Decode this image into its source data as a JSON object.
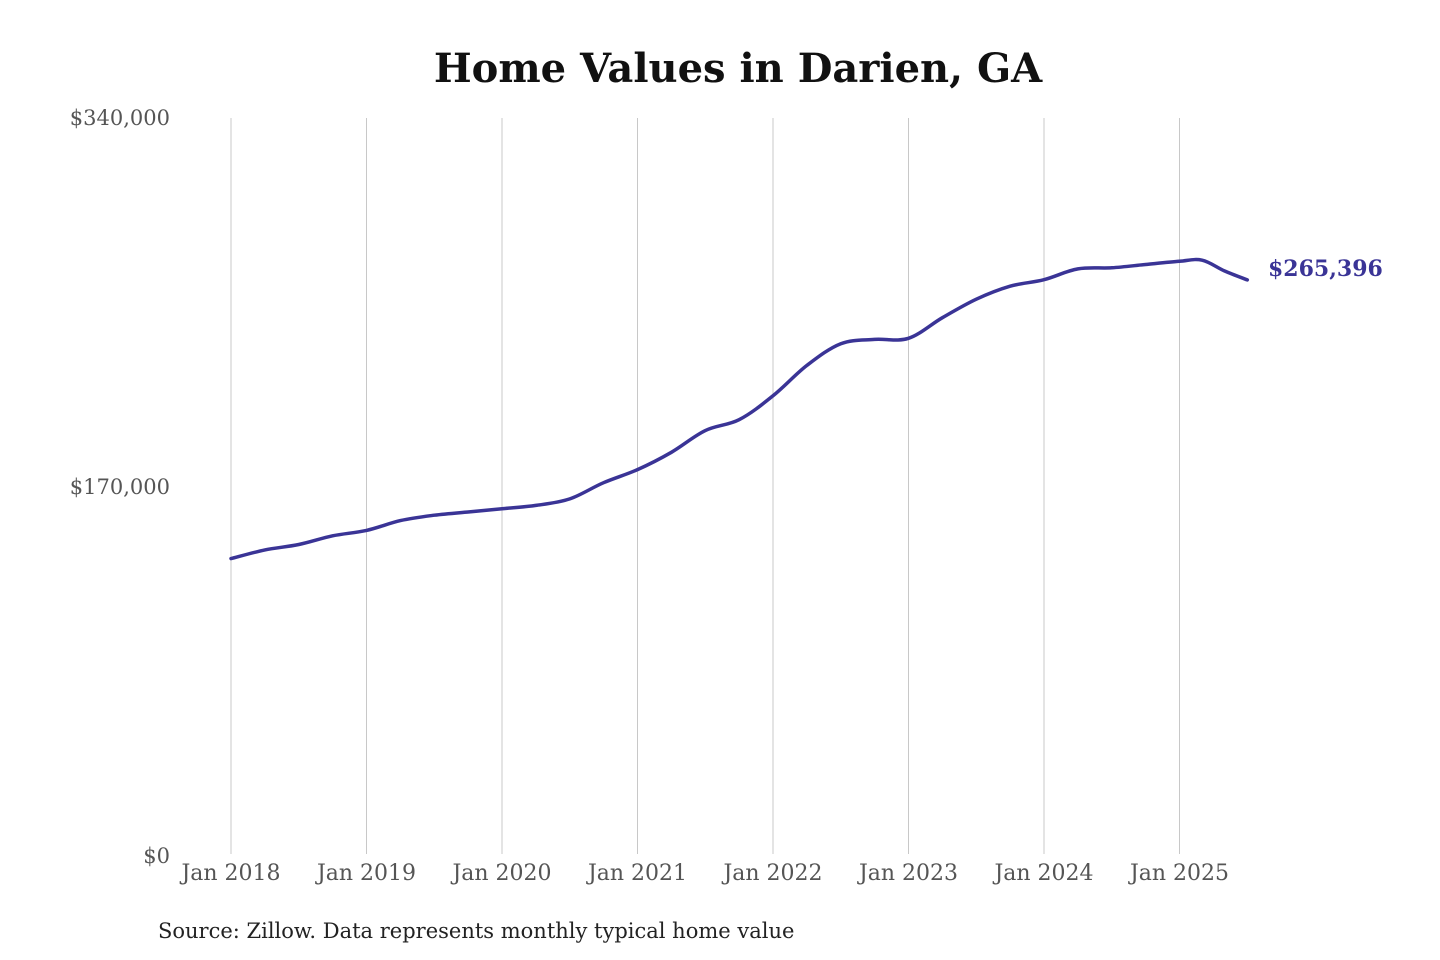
{
  "chart_data": {
    "type": "line",
    "title": "Home Values in Darien, GA",
    "xlabel": "",
    "ylabel": "",
    "ylim": [
      0,
      340000
    ],
    "yticks": [
      0,
      170000,
      340000
    ],
    "ytick_labels": [
      "$0",
      "$170,000",
      "$340,000"
    ],
    "xticks": [
      "2018-01",
      "2019-01",
      "2020-01",
      "2021-01",
      "2022-01",
      "2023-01",
      "2024-01",
      "2025-01"
    ],
    "xtick_labels": [
      "Jan 2018",
      "Jan 2019",
      "Jan 2020",
      "Jan 2021",
      "Jan 2022",
      "Jan 2023",
      "Jan 2024",
      "Jan 2025"
    ],
    "x_range": [
      "2018-01",
      "2025-07"
    ],
    "grid": "vertical",
    "line_color": "#3a3496",
    "end_label": "$265,396",
    "source": "Source: Zillow. Data represents monthly typical home value",
    "series": [
      {
        "values": [
          {
            "x": "2018-01",
            "y": 137000
          },
          {
            "x": "2018-04",
            "y": 141000
          },
          {
            "x": "2018-07",
            "y": 143500
          },
          {
            "x": "2018-10",
            "y": 147500
          },
          {
            "x": "2019-01",
            "y": 150000
          },
          {
            "x": "2019-04",
            "y": 154500
          },
          {
            "x": "2019-07",
            "y": 157000
          },
          {
            "x": "2019-10",
            "y": 158500
          },
          {
            "x": "2020-01",
            "y": 160000
          },
          {
            "x": "2020-04",
            "y": 161500
          },
          {
            "x": "2020-07",
            "y": 164500
          },
          {
            "x": "2020-10",
            "y": 172000
          },
          {
            "x": "2021-01",
            "y": 178000
          },
          {
            "x": "2021-04",
            "y": 186000
          },
          {
            "x": "2021-07",
            "y": 196000
          },
          {
            "x": "2021-10",
            "y": 201000
          },
          {
            "x": "2022-01",
            "y": 212000
          },
          {
            "x": "2022-04",
            "y": 226000
          },
          {
            "x": "2022-07",
            "y": 236000
          },
          {
            "x": "2022-10",
            "y": 238000
          },
          {
            "x": "2023-01",
            "y": 238500
          },
          {
            "x": "2023-04",
            "y": 248000
          },
          {
            "x": "2023-07",
            "y": 256500
          },
          {
            "x": "2023-10",
            "y": 262500
          },
          {
            "x": "2024-01",
            "y": 265500
          },
          {
            "x": "2024-04",
            "y": 270500
          },
          {
            "x": "2024-07",
            "y": 271000
          },
          {
            "x": "2024-10",
            "y": 272500
          },
          {
            "x": "2025-01",
            "y": 274000
          },
          {
            "x": "2025-03",
            "y": 274500
          },
          {
            "x": "2025-05",
            "y": 269500
          },
          {
            "x": "2025-07",
            "y": 265396
          }
        ]
      }
    ]
  }
}
